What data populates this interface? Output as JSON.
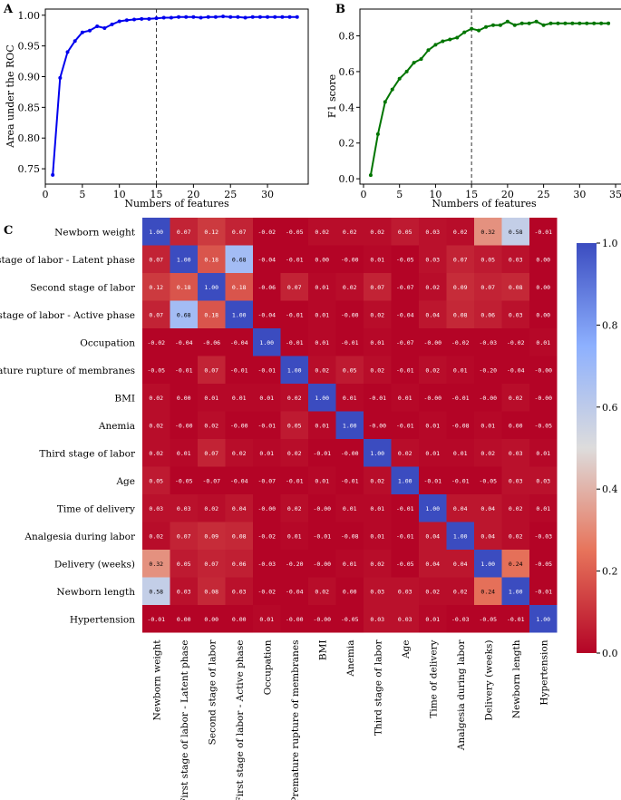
{
  "panels": {
    "a": "A",
    "b": "B",
    "c": "C"
  },
  "chart_data": [
    {
      "type": "line",
      "panel": "A",
      "xlabel": "Numbers of features",
      "ylabel": "Area under the ROC",
      "color": "#0000ee",
      "xlim": [
        0,
        35.5
      ],
      "ylim": [
        0.725,
        1.01
      ],
      "xticks": [
        0,
        5,
        10,
        15,
        20,
        25,
        30
      ],
      "yticks": [
        0.75,
        0.8,
        0.85,
        0.9,
        0.95,
        1.0
      ],
      "ytick_labels": [
        "0.75",
        "0.80",
        "0.85",
        "0.90",
        "0.95",
        "1.00"
      ],
      "vline_x": 15,
      "x": [
        1,
        2,
        3,
        4,
        5,
        6,
        7,
        8,
        9,
        10,
        11,
        12,
        13,
        14,
        15,
        16,
        17,
        18,
        19,
        20,
        21,
        22,
        23,
        24,
        25,
        26,
        27,
        28,
        29,
        30,
        31,
        32,
        33,
        34
      ],
      "y": [
        0.74,
        0.898,
        0.94,
        0.958,
        0.972,
        0.975,
        0.982,
        0.979,
        0.985,
        0.99,
        0.992,
        0.993,
        0.994,
        0.994,
        0.995,
        0.996,
        0.996,
        0.997,
        0.997,
        0.997,
        0.996,
        0.997,
        0.997,
        0.998,
        0.997,
        0.997,
        0.996,
        0.997,
        0.997,
        0.997,
        0.997,
        0.997,
        0.997,
        0.997
      ]
    },
    {
      "type": "line",
      "panel": "B",
      "xlabel": "Numbers of features",
      "ylabel": "F1 score",
      "color": "#007500",
      "xlim": [
        -0.5,
        36
      ],
      "ylim": [
        -0.03,
        0.95
      ],
      "xticks": [
        0,
        5,
        10,
        15,
        20,
        25,
        30,
        35
      ],
      "yticks": [
        0.0,
        0.2,
        0.4,
        0.6,
        0.8
      ],
      "ytick_labels": [
        "0.0",
        "0.2",
        "0.4",
        "0.6",
        "0.8"
      ],
      "vline_x": 15,
      "x": [
        1,
        2,
        3,
        4,
        5,
        6,
        7,
        8,
        9,
        10,
        11,
        12,
        13,
        14,
        15,
        16,
        17,
        18,
        19,
        20,
        21,
        22,
        23,
        24,
        25,
        26,
        27,
        28,
        29,
        30,
        31,
        32,
        33,
        34
      ],
      "y": [
        0.02,
        0.25,
        0.43,
        0.5,
        0.56,
        0.6,
        0.65,
        0.67,
        0.72,
        0.75,
        0.77,
        0.78,
        0.79,
        0.82,
        0.84,
        0.83,
        0.85,
        0.86,
        0.86,
        0.88,
        0.86,
        0.87,
        0.87,
        0.88,
        0.86,
        0.87,
        0.87,
        0.87,
        0.87,
        0.87,
        0.87,
        0.87,
        0.87,
        0.87
      ]
    },
    {
      "type": "heatmap",
      "panel": "C",
      "colorbar_range": [
        0.0,
        1.0
      ],
      "colorbar_ticks": [
        "0.0",
        "0.2",
        "0.4",
        "0.6",
        "0.8",
        "1.0"
      ],
      "labels": [
        "Newborn weight",
        "First stage of labor - Latent phase",
        "Second stage of labor",
        "First stage of labor - Active phase",
        "Occupation",
        "Premature rupture of membranes",
        "BMI",
        "Anemia",
        "Third stage of labor",
        "Age",
        "Time of delivery",
        "Analgesia during labor",
        "Delivery (weeks)",
        "Newborn length",
        "Hypertension"
      ],
      "values": [
        [
          "1.00",
          "0.07",
          "0.12",
          "0.07",
          "-0.02",
          "-0.05",
          "0.02",
          "0.02",
          "0.02",
          "0.05",
          "0.03",
          "0.02",
          "0.32",
          "0.58",
          "-0.01"
        ],
        [
          "0.07",
          "1.00",
          "0.18",
          "0.68",
          "-0.04",
          "-0.01",
          "0.00",
          "-0.00",
          "0.01",
          "-0.05",
          "0.03",
          "0.07",
          "0.05",
          "0.03",
          "0.00"
        ],
        [
          "0.12",
          "0.18",
          "1.00",
          "0.18",
          "-0.06",
          "0.07",
          "0.01",
          "0.02",
          "0.07",
          "-0.07",
          "0.02",
          "0.09",
          "0.07",
          "0.08",
          "0.00"
        ],
        [
          "0.07",
          "0.68",
          "0.18",
          "1.00",
          "-0.04",
          "-0.01",
          "0.01",
          "-0.00",
          "0.02",
          "-0.04",
          "0.04",
          "0.08",
          "0.06",
          "0.03",
          "0.00"
        ],
        [
          "-0.02",
          "-0.04",
          "-0.06",
          "-0.04",
          "1.00",
          "-0.01",
          "0.01",
          "-0.01",
          "0.01",
          "-0.07",
          "-0.00",
          "-0.02",
          "-0.03",
          "-0.02",
          "0.01"
        ],
        [
          "-0.05",
          "-0.01",
          "0.07",
          "-0.01",
          "-0.01",
          "1.00",
          "0.02",
          "0.05",
          "0.02",
          "-0.01",
          "0.02",
          "0.01",
          "-0.20",
          "-0.04",
          "-0.00"
        ],
        [
          "0.02",
          "0.00",
          "0.01",
          "0.01",
          "0.01",
          "0.02",
          "1.00",
          "0.01",
          "-0.01",
          "0.01",
          "-0.00",
          "-0.01",
          "-0.00",
          "0.02",
          "-0.00"
        ],
        [
          "0.02",
          "-0.00",
          "0.02",
          "-0.00",
          "-0.01",
          "0.05",
          "0.01",
          "1.00",
          "-0.00",
          "-0.01",
          "0.01",
          "-0.08",
          "0.01",
          "0.00",
          "-0.05"
        ],
        [
          "0.02",
          "0.01",
          "0.07",
          "0.02",
          "0.01",
          "0.02",
          "-0.01",
          "-0.00",
          "1.00",
          "0.02",
          "0.01",
          "0.01",
          "0.02",
          "0.03",
          "0.01"
        ],
        [
          "0.05",
          "-0.05",
          "-0.07",
          "-0.04",
          "-0.07",
          "-0.01",
          "0.01",
          "-0.01",
          "0.02",
          "1.00",
          "-0.01",
          "-0.01",
          "-0.05",
          "0.03",
          "0.03"
        ],
        [
          "0.03",
          "0.03",
          "0.02",
          "0.04",
          "-0.00",
          "0.02",
          "-0.00",
          "0.01",
          "0.01",
          "-0.01",
          "1.00",
          "0.04",
          "0.04",
          "0.02",
          "0.01"
        ],
        [
          "0.02",
          "0.07",
          "0.09",
          "0.08",
          "-0.02",
          "0.01",
          "-0.01",
          "-0.08",
          "0.01",
          "-0.01",
          "0.04",
          "1.00",
          "0.04",
          "0.02",
          "-0.03"
        ],
        [
          "0.32",
          "0.05",
          "0.07",
          "0.06",
          "-0.03",
          "-0.20",
          "-0.00",
          "0.01",
          "0.02",
          "-0.05",
          "0.04",
          "0.04",
          "1.00",
          "0.24",
          "-0.05"
        ],
        [
          "0.58",
          "0.03",
          "0.08",
          "0.03",
          "-0.02",
          "-0.04",
          "0.02",
          "0.00",
          "0.03",
          "0.03",
          "0.02",
          "0.02",
          "0.24",
          "1.00",
          "-0.01"
        ],
        [
          "-0.01",
          "0.00",
          "0.00",
          "0.00",
          "0.01",
          "-0.00",
          "-0.00",
          "-0.05",
          "0.03",
          "0.03",
          "0.01",
          "-0.03",
          "-0.05",
          "-0.01",
          "1.00"
        ]
      ]
    }
  ]
}
